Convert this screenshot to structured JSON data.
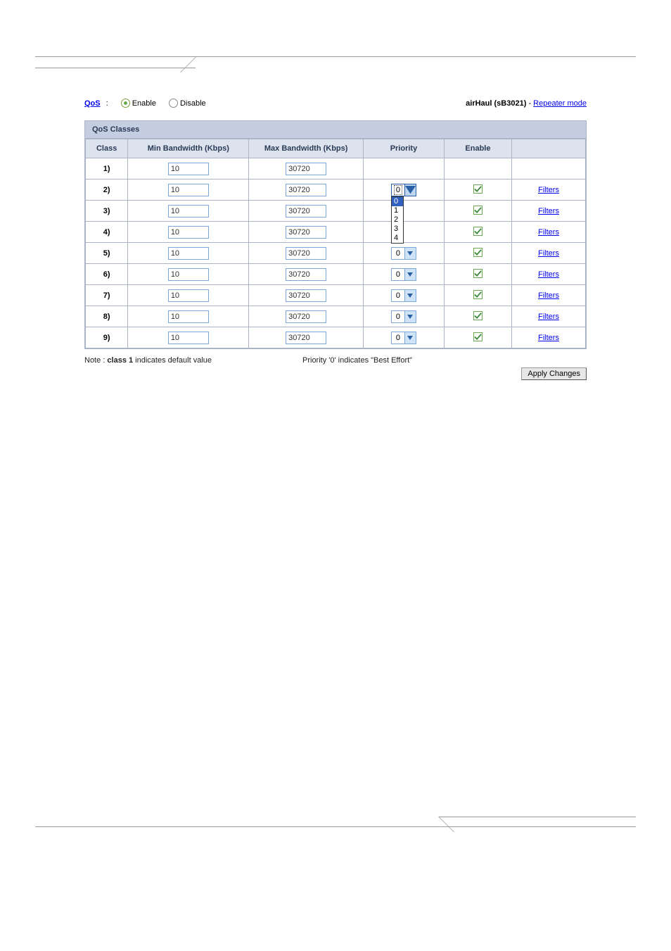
{
  "header": {
    "qos_link_label": "QoS",
    "colon": " :",
    "enable_label": "Enable",
    "disable_label": "Disable",
    "selected_radio": "enable",
    "device_label": "airHaul (sB3021)",
    "mode_link_label": "Repeater mode"
  },
  "table": {
    "section_title": "QoS Classes",
    "columns": {
      "class": "Class",
      "min": "Min Bandwidth (Kbps)",
      "max": "Max Bandwidth (Kbps)",
      "priority": "Priority",
      "enable": "Enable",
      "filters": ""
    },
    "filters_link_label": "Filters",
    "priority_options": [
      "0",
      "1",
      "2",
      "3",
      "4"
    ],
    "rows": [
      {
        "class": "1)",
        "min": "10",
        "max": "30720",
        "priority": null,
        "enable": null,
        "filters": false
      },
      {
        "class": "2)",
        "min": "10",
        "max": "30720",
        "priority": "0",
        "priority_open": true,
        "enable": true,
        "filters": true
      },
      {
        "class": "3)",
        "min": "10",
        "max": "30720",
        "priority": null,
        "enable": true,
        "filters": true
      },
      {
        "class": "4)",
        "min": "10",
        "max": "30720",
        "priority": null,
        "enable": true,
        "filters": true
      },
      {
        "class": "5)",
        "min": "10",
        "max": "30720",
        "priority": "0",
        "enable": true,
        "filters": true
      },
      {
        "class": "6)",
        "min": "10",
        "max": "30720",
        "priority": "0",
        "enable": true,
        "filters": true
      },
      {
        "class": "7)",
        "min": "10",
        "max": "30720",
        "priority": "0",
        "enable": true,
        "filters": true
      },
      {
        "class": "8)",
        "min": "10",
        "max": "30720",
        "priority": "0",
        "enable": true,
        "filters": true
      },
      {
        "class": "9)",
        "min": "10",
        "max": "30720",
        "priority": "0",
        "enable": true,
        "filters": true
      }
    ]
  },
  "notes": {
    "left_prefix": "Note : ",
    "left_bold": "class 1",
    "left_suffix": " indicates default value",
    "right": "Priority '0' indicates \"Best Effort\""
  },
  "apply_button_label": "Apply Changes",
  "colors": {
    "link": "#0000ee",
    "header_bg": "#c5cee0",
    "th_bg": "#dce3ef",
    "border": "#aab4c4",
    "input_border": "#7ea6d9",
    "check_green": "#6aa84f"
  }
}
